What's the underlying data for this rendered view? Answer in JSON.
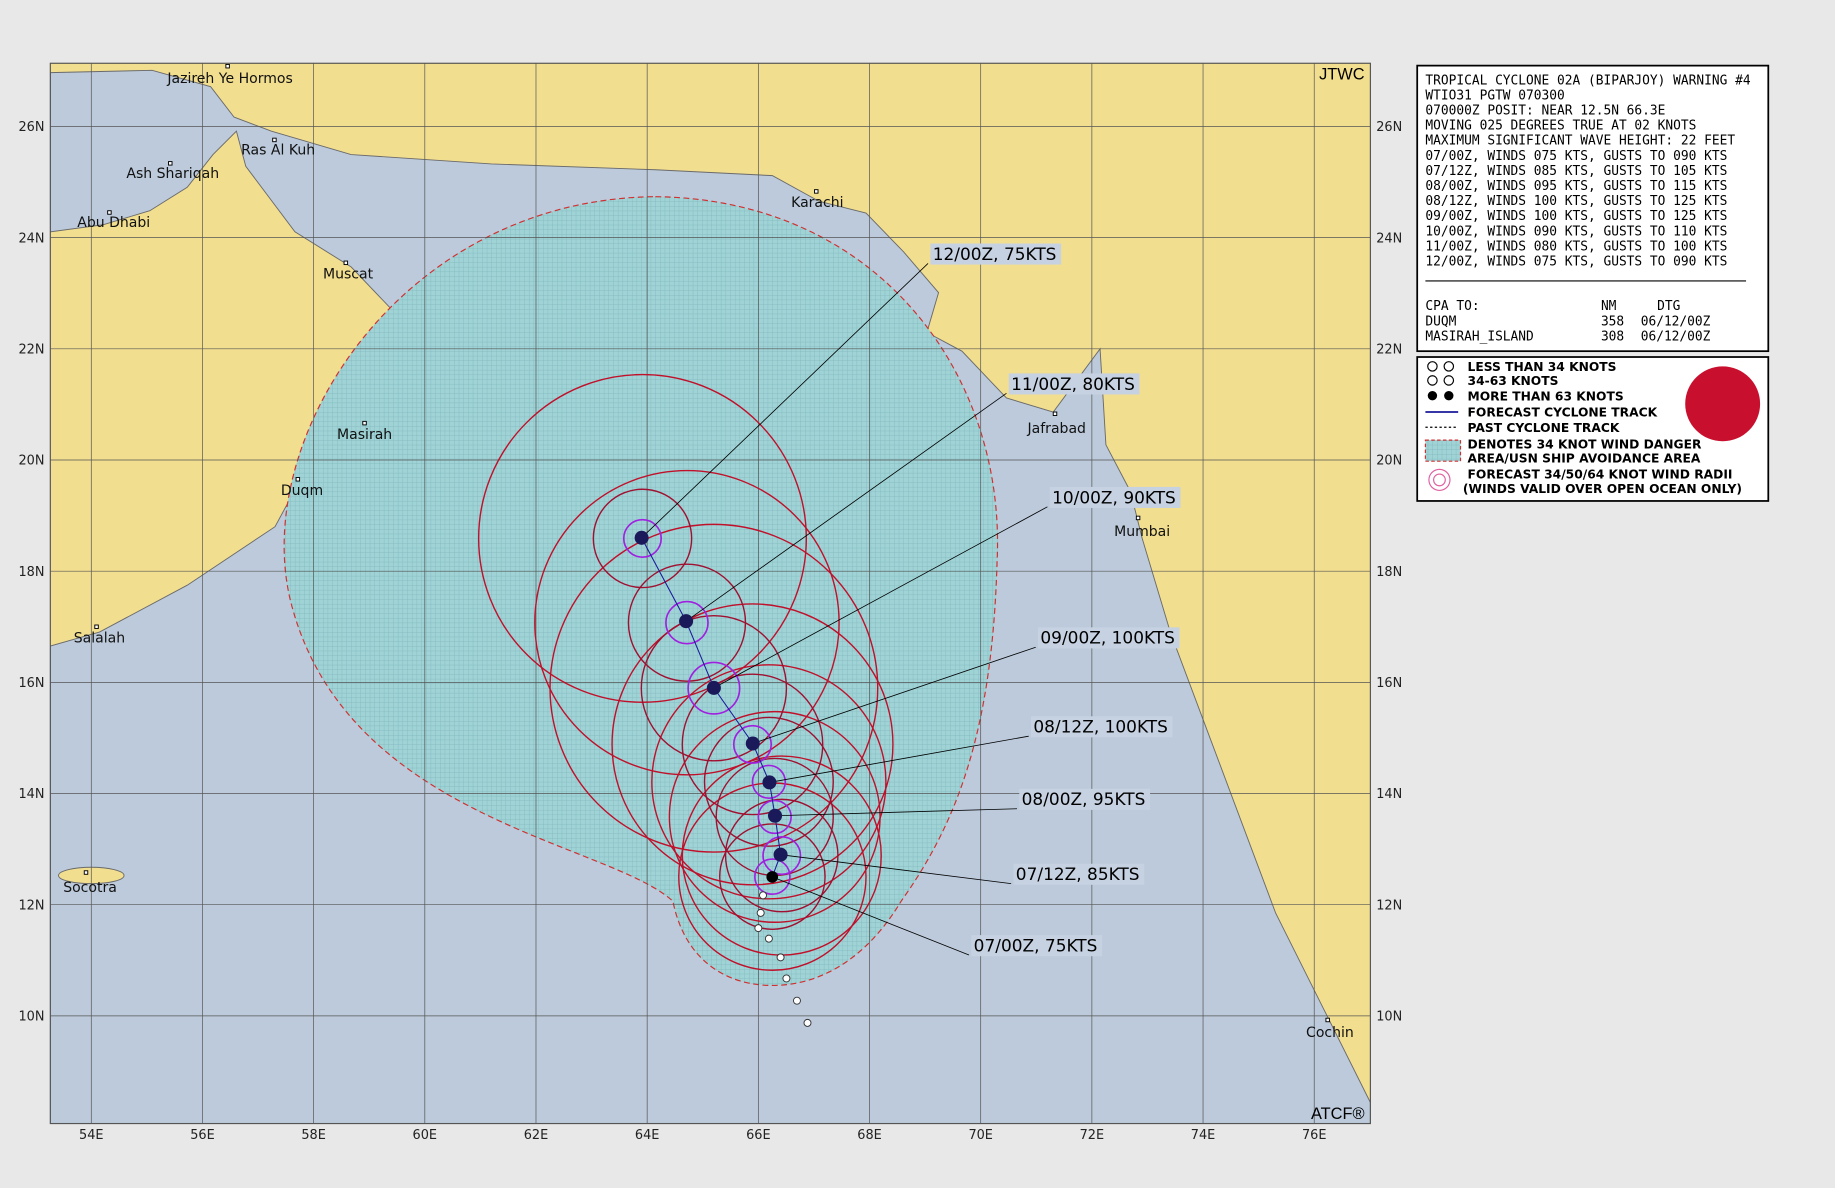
{
  "map": {
    "credit_top": "JTWC",
    "credit_bottom": "ATCF®",
    "lon_ticks": [
      {
        "value": 54,
        "label": "54E"
      },
      {
        "value": 56,
        "label": "56E"
      },
      {
        "value": 58,
        "label": "58E"
      },
      {
        "value": 60,
        "label": "60E"
      },
      {
        "value": 62,
        "label": "62E"
      },
      {
        "value": 64,
        "label": "64E"
      },
      {
        "value": 66,
        "label": "66E"
      },
      {
        "value": 68,
        "label": "68E"
      },
      {
        "value": 70,
        "label": "70E"
      },
      {
        "value": 72,
        "label": "72E"
      },
      {
        "value": 74,
        "label": "74E"
      },
      {
        "value": 76,
        "label": "76E"
      }
    ],
    "lat_ticks": [
      {
        "value": 26,
        "label": "26N"
      },
      {
        "value": 24,
        "label": "24N"
      },
      {
        "value": 22,
        "label": "22N"
      },
      {
        "value": 20,
        "label": "20N"
      },
      {
        "value": 18,
        "label": "18N"
      },
      {
        "value": 16,
        "label": "16N"
      },
      {
        "value": 14,
        "label": "14N"
      },
      {
        "value": 12,
        "label": "12N"
      },
      {
        "value": 10,
        "label": "10N"
      }
    ],
    "places": [
      "Jazireh Ye Hormos",
      "Ras Al Kuh",
      "Ash Shariqah",
      "Abu Dhabi",
      "Muscat",
      "Karachi",
      "Masirah",
      "Duqm",
      "Jafrabad",
      "Mumbai",
      "Salalah",
      "Socotra",
      "Cochin"
    ],
    "forecast": [
      {
        "label": "07/00Z, 75KTS",
        "lat": 12.5,
        "lon": 66.25
      },
      {
        "label": "07/12Z, 85KTS",
        "lat": 12.9,
        "lon": 66.4
      },
      {
        "label": "08/00Z, 95KTS",
        "lat": 13.6,
        "lon": 66.3
      },
      {
        "label": "08/12Z, 100KTS",
        "lat": 14.2,
        "lon": 66.2
      },
      {
        "label": "09/00Z, 100KTS",
        "lat": 14.9,
        "lon": 65.9
      },
      {
        "label": "10/00Z, 90KTS",
        "lat": 15.9,
        "lon": 65.2
      },
      {
        "label": "11/00Z, 80KTS",
        "lat": 17.1,
        "lon": 64.7
      },
      {
        "label": "12/00Z, 75KTS",
        "lat": 18.6,
        "lon": 63.9
      }
    ]
  },
  "warning": [
    "TROPICAL CYCLONE 02A (BIPARJOY) WARNING #4",
    "WTIO31 PGTW 070300",
    "070000Z POSIT: NEAR 12.5N 66.3E",
    "MOVING 025 DEGREES TRUE AT 02 KNOTS",
    "MAXIMUM SIGNIFICANT WAVE HEIGHT: 22 FEET",
    "07/00Z, WINDS 075 KTS, GUSTS TO 090 KTS",
    "07/12Z, WINDS 085 KTS, GUSTS TO 105 KTS",
    "08/00Z, WINDS 095 KTS, GUSTS TO 115 KTS",
    "08/12Z, WINDS 100 KTS, GUSTS TO 125 KTS",
    "09/00Z, WINDS 100 KTS, GUSTS TO 125 KTS",
    "10/00Z, WINDS 090 KTS, GUSTS TO 110 KTS",
    "11/00Z, WINDS 080 KTS, GUSTS TO 100 KTS",
    "12/00Z, WINDS 075 KTS, GUSTS TO 090 KTS"
  ],
  "cpa": {
    "header": [
      "CPA TO:",
      "NM",
      "DTG"
    ],
    "rows": [
      [
        "DUQM",
        "358",
        "06/12/00Z"
      ],
      [
        "MASIRAH_ISLAND",
        "308",
        "06/12/00Z"
      ]
    ]
  },
  "legend": [
    "LESS THAN 34 KNOTS",
    "34-63 KNOTS",
    "MORE THAN 63 KNOTS",
    "FORECAST CYCLONE TRACK",
    "PAST CYCLONE TRACK",
    "DENOTES 34 KNOT WIND DANGER",
    "AREA/USN SHIP AVOIDANCE AREA",
    "FORECAST 34/50/64 KNOT WIND RADII",
    "(WINDS VALID OVER OPEN OCEAN ONLY)"
  ]
}
